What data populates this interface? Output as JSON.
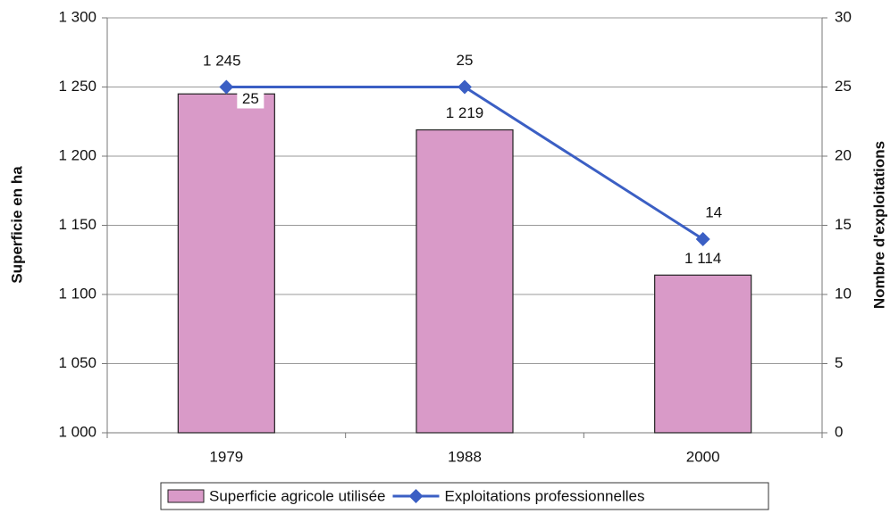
{
  "chart_data": {
    "type": "bar-line",
    "categories": [
      "1979",
      "1988",
      "2000"
    ],
    "series": [
      {
        "name": "Superficie agricole utilisée",
        "type": "bar",
        "color": "#d99ac8",
        "values": [
          1245,
          1219,
          1114
        ],
        "value_labels": [
          "1 245",
          "1 219",
          "1 114"
        ]
      },
      {
        "name": "Exploitations professionnelles",
        "type": "line",
        "axis": "y2",
        "color": "#3b5fc4",
        "values": [
          25,
          25,
          14
        ]
      }
    ],
    "ylabel": "Superficie en ha",
    "y2label": "Nombre d'exploitations",
    "ylim": [
      1000,
      1300
    ],
    "yticks": [
      {
        "value": 1000,
        "label": "1 000"
      },
      {
        "value": 1050,
        "label": "1 050"
      },
      {
        "value": 1100,
        "label": "1 100"
      },
      {
        "value": 1150,
        "label": "1 150"
      },
      {
        "value": 1200,
        "label": "1 200"
      },
      {
        "value": 1250,
        "label": "1 250"
      },
      {
        "value": 1300,
        "label": "1 300"
      }
    ],
    "y2lim": [
      0,
      30
    ],
    "y2ticks": [
      0,
      5,
      10,
      15,
      20,
      25,
      30
    ],
    "grid": true,
    "legend": "bottom"
  }
}
